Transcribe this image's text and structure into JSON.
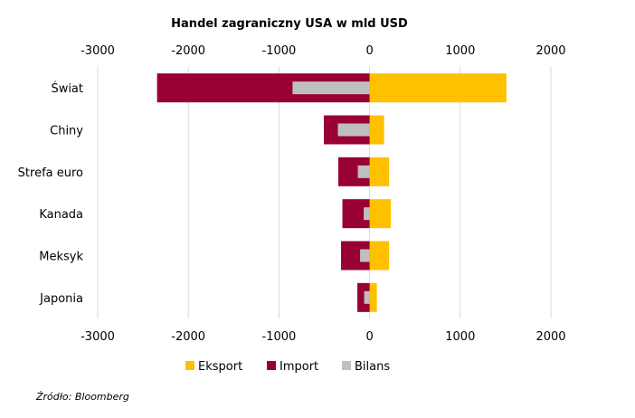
{
  "chart_data": {
    "type": "bar",
    "title": "Handel zagraniczny USA w mld USD",
    "xlim": [
      -3000,
      2000
    ],
    "ticks": [
      "-3000",
      "-2000",
      "-1000",
      "0",
      "1000",
      "2000"
    ],
    "tick_values": [
      -3000,
      -2000,
      -1000,
      0,
      1000,
      2000
    ],
    "categories": [
      "Świat",
      "Chiny",
      "Strefa euro",
      "Kanada",
      "Meksyk",
      "Japonia"
    ],
    "series": [
      {
        "name": "Eksport",
        "color": "#FFC000",
        "values": [
          1510,
          160,
          215,
          235,
          215,
          80
        ]
      },
      {
        "name": "Import",
        "color": "#990033",
        "values": [
          -2345,
          -505,
          -345,
          -300,
          -315,
          -135
        ]
      },
      {
        "name": "Bilans",
        "color": "#BFBFBF",
        "values": [
          -850,
          -350,
          -130,
          -65,
          -105,
          -60
        ]
      }
    ],
    "legend_position": "bottom",
    "grid": true
  },
  "source": "Źródło: Bloomberg"
}
